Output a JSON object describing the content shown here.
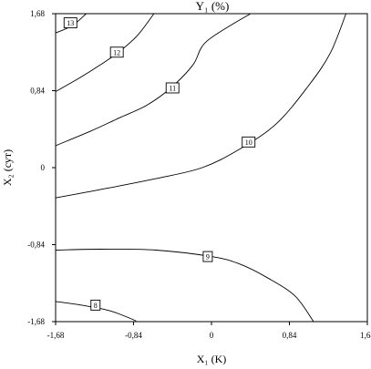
{
  "chart_data": {
    "type": "contour",
    "title": "Y₁ (%)",
    "xlabel": "X₁ (K)",
    "ylabel": "X₂ (сут)",
    "xlim": [
      -1.68,
      1.68
    ],
    "ylim": [
      -1.68,
      1.68
    ],
    "x_ticks": [
      "-1,68",
      "-0,84",
      "0",
      "0,84",
      "1,68"
    ],
    "y_ticks": [
      "-1,68",
      "-0,84",
      "0",
      "0,84",
      "1,68"
    ],
    "grid": false,
    "contours": [
      {
        "level": "13",
        "label_at": [
          -1.52,
          1.58
        ],
        "points": [
          [
            -1.68,
            1.47
          ],
          [
            -1.5,
            1.55
          ],
          [
            -1.35,
            1.68
          ]
        ]
      },
      {
        "level": "12",
        "label_at": [
          -1.02,
          1.26
        ],
        "points": [
          [
            -1.68,
            0.83
          ],
          [
            -1.42,
            0.98
          ],
          [
            -1.2,
            1.12
          ],
          [
            -1.0,
            1.26
          ],
          [
            -0.8,
            1.44
          ],
          [
            -0.62,
            1.68
          ]
        ]
      },
      {
        "level": "11",
        "label_at": [
          -0.42,
          0.87
        ],
        "points": [
          [
            -1.68,
            0.24
          ],
          [
            -1.3,
            0.4
          ],
          [
            -1.0,
            0.54
          ],
          [
            -0.7,
            0.68
          ],
          [
            -0.45,
            0.86
          ],
          [
            -0.2,
            1.12
          ],
          [
            -0.05,
            1.38
          ],
          [
            0.42,
            1.68
          ]
        ]
      },
      {
        "level": "10",
        "label_at": [
          0.4,
          0.28
        ],
        "points": [
          [
            -1.68,
            -0.33
          ],
          [
            -1.2,
            -0.24
          ],
          [
            -0.6,
            -0.12
          ],
          [
            -0.1,
            0.0
          ],
          [
            0.3,
            0.2
          ],
          [
            0.7,
            0.48
          ],
          [
            1.05,
            0.9
          ],
          [
            1.28,
            1.25
          ],
          [
            1.45,
            1.68
          ]
        ]
      },
      {
        "level": "9",
        "label_at": [
          -0.04,
          -0.97
        ],
        "points": [
          [
            -1.68,
            -0.9
          ],
          [
            -1.2,
            -0.89
          ],
          [
            -0.6,
            -0.9
          ],
          [
            0.0,
            -0.97
          ],
          [
            0.3,
            -1.05
          ],
          [
            0.6,
            -1.2
          ],
          [
            0.9,
            -1.4
          ],
          [
            1.1,
            -1.68
          ]
        ]
      },
      {
        "level": "8",
        "label_at": [
          -1.25,
          -1.5
        ],
        "points": [
          [
            -1.68,
            -1.46
          ],
          [
            -1.4,
            -1.5
          ],
          [
            -1.1,
            -1.56
          ],
          [
            -0.84,
            -1.66
          ],
          [
            -0.82,
            -1.68
          ]
        ]
      }
    ]
  }
}
